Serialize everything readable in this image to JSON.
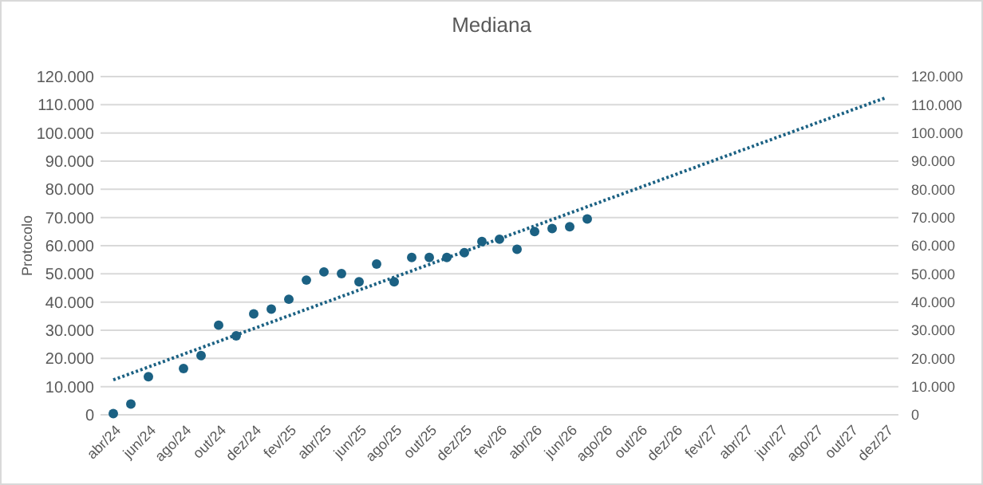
{
  "chart_data": {
    "type": "scatter",
    "title": "Mediana",
    "ylabel": "Protocolo",
    "categories": [
      "abr/24",
      null,
      "jun/24",
      null,
      "ago/24",
      null,
      "out/24",
      null,
      "dez/24",
      null,
      "fev/25",
      null,
      "abr/25",
      null,
      "jun/25",
      null,
      "ago/25",
      null,
      "out/25",
      null,
      "dez/25",
      null,
      "fev/26",
      null,
      "abr/26",
      null,
      "jun/26",
      null,
      "ago/26",
      null,
      "out/26",
      null,
      "dez/26",
      null,
      "fev/27",
      null,
      "abr/27",
      null,
      "jun/27",
      null,
      "ago/27",
      null,
      "out/27",
      null,
      "dez/27"
    ],
    "series": [
      {
        "color": "#1b6183",
        "marker": "circle",
        "values": [
          400,
          3800,
          13500,
          null,
          16400,
          21000,
          31800,
          28000,
          35800,
          37500,
          41000,
          47800,
          50700,
          50100,
          47200,
          53500,
          47200,
          55800,
          55800,
          55800,
          57500,
          61500,
          62300,
          58700,
          65000,
          66100,
          66700,
          69500,
          null,
          null,
          null,
          null,
          null,
          null,
          null,
          null,
          null,
          null,
          null,
          null,
          null,
          null,
          null,
          null,
          null
        ]
      },
      {
        "type": "line",
        "color": "#1b6183",
        "line_style": "dotted",
        "x": [
          "abr/24",
          "dez/27"
        ],
        "values": [
          12400,
          112500
        ]
      }
    ],
    "ylim": [
      0,
      120000
    ],
    "yticks": [
      0,
      {
        "value": 10000,
        "label": "10.000"
      },
      {
        "value": 20000,
        "label": "20.000"
      },
      {
        "value": 30000,
        "label": "30.000"
      },
      {
        "value": 40000,
        "label": "40.000"
      },
      {
        "value": 50000,
        "label": "50.000"
      },
      {
        "value": 60000,
        "label": "60.000"
      },
      {
        "value": 70000,
        "label": "70.000"
      },
      {
        "value": 80000,
        "label": "80.000"
      },
      {
        "value": 90000,
        "label": "90.000"
      },
      {
        "value": 100000,
        "label": "100.000"
      },
      {
        "value": 110000,
        "label": "110.000"
      },
      {
        "value": 120000,
        "label": "120.000"
      }
    ],
    "y2lim": [
      0,
      120000
    ],
    "y2ticks": [
      0,
      {
        "value": 10000,
        "label": "10.000"
      },
      {
        "value": 20000,
        "label": "20.000"
      },
      {
        "value": 30000,
        "label": "30.000"
      },
      {
        "value": 40000,
        "label": "40.000"
      },
      {
        "value": 50000,
        "label": "50.000"
      },
      {
        "value": 60000,
        "label": "60.000"
      },
      {
        "value": 70000,
        "label": "70.000"
      },
      {
        "value": 80000,
        "label": "80.000"
      },
      {
        "value": 90000,
        "label": "90.000"
      },
      {
        "value": 100000,
        "label": "100.000"
      },
      {
        "value": 110000,
        "label": "110.000"
      },
      {
        "value": 120000,
        "label": "120.000"
      }
    ],
    "grid": "y"
  }
}
